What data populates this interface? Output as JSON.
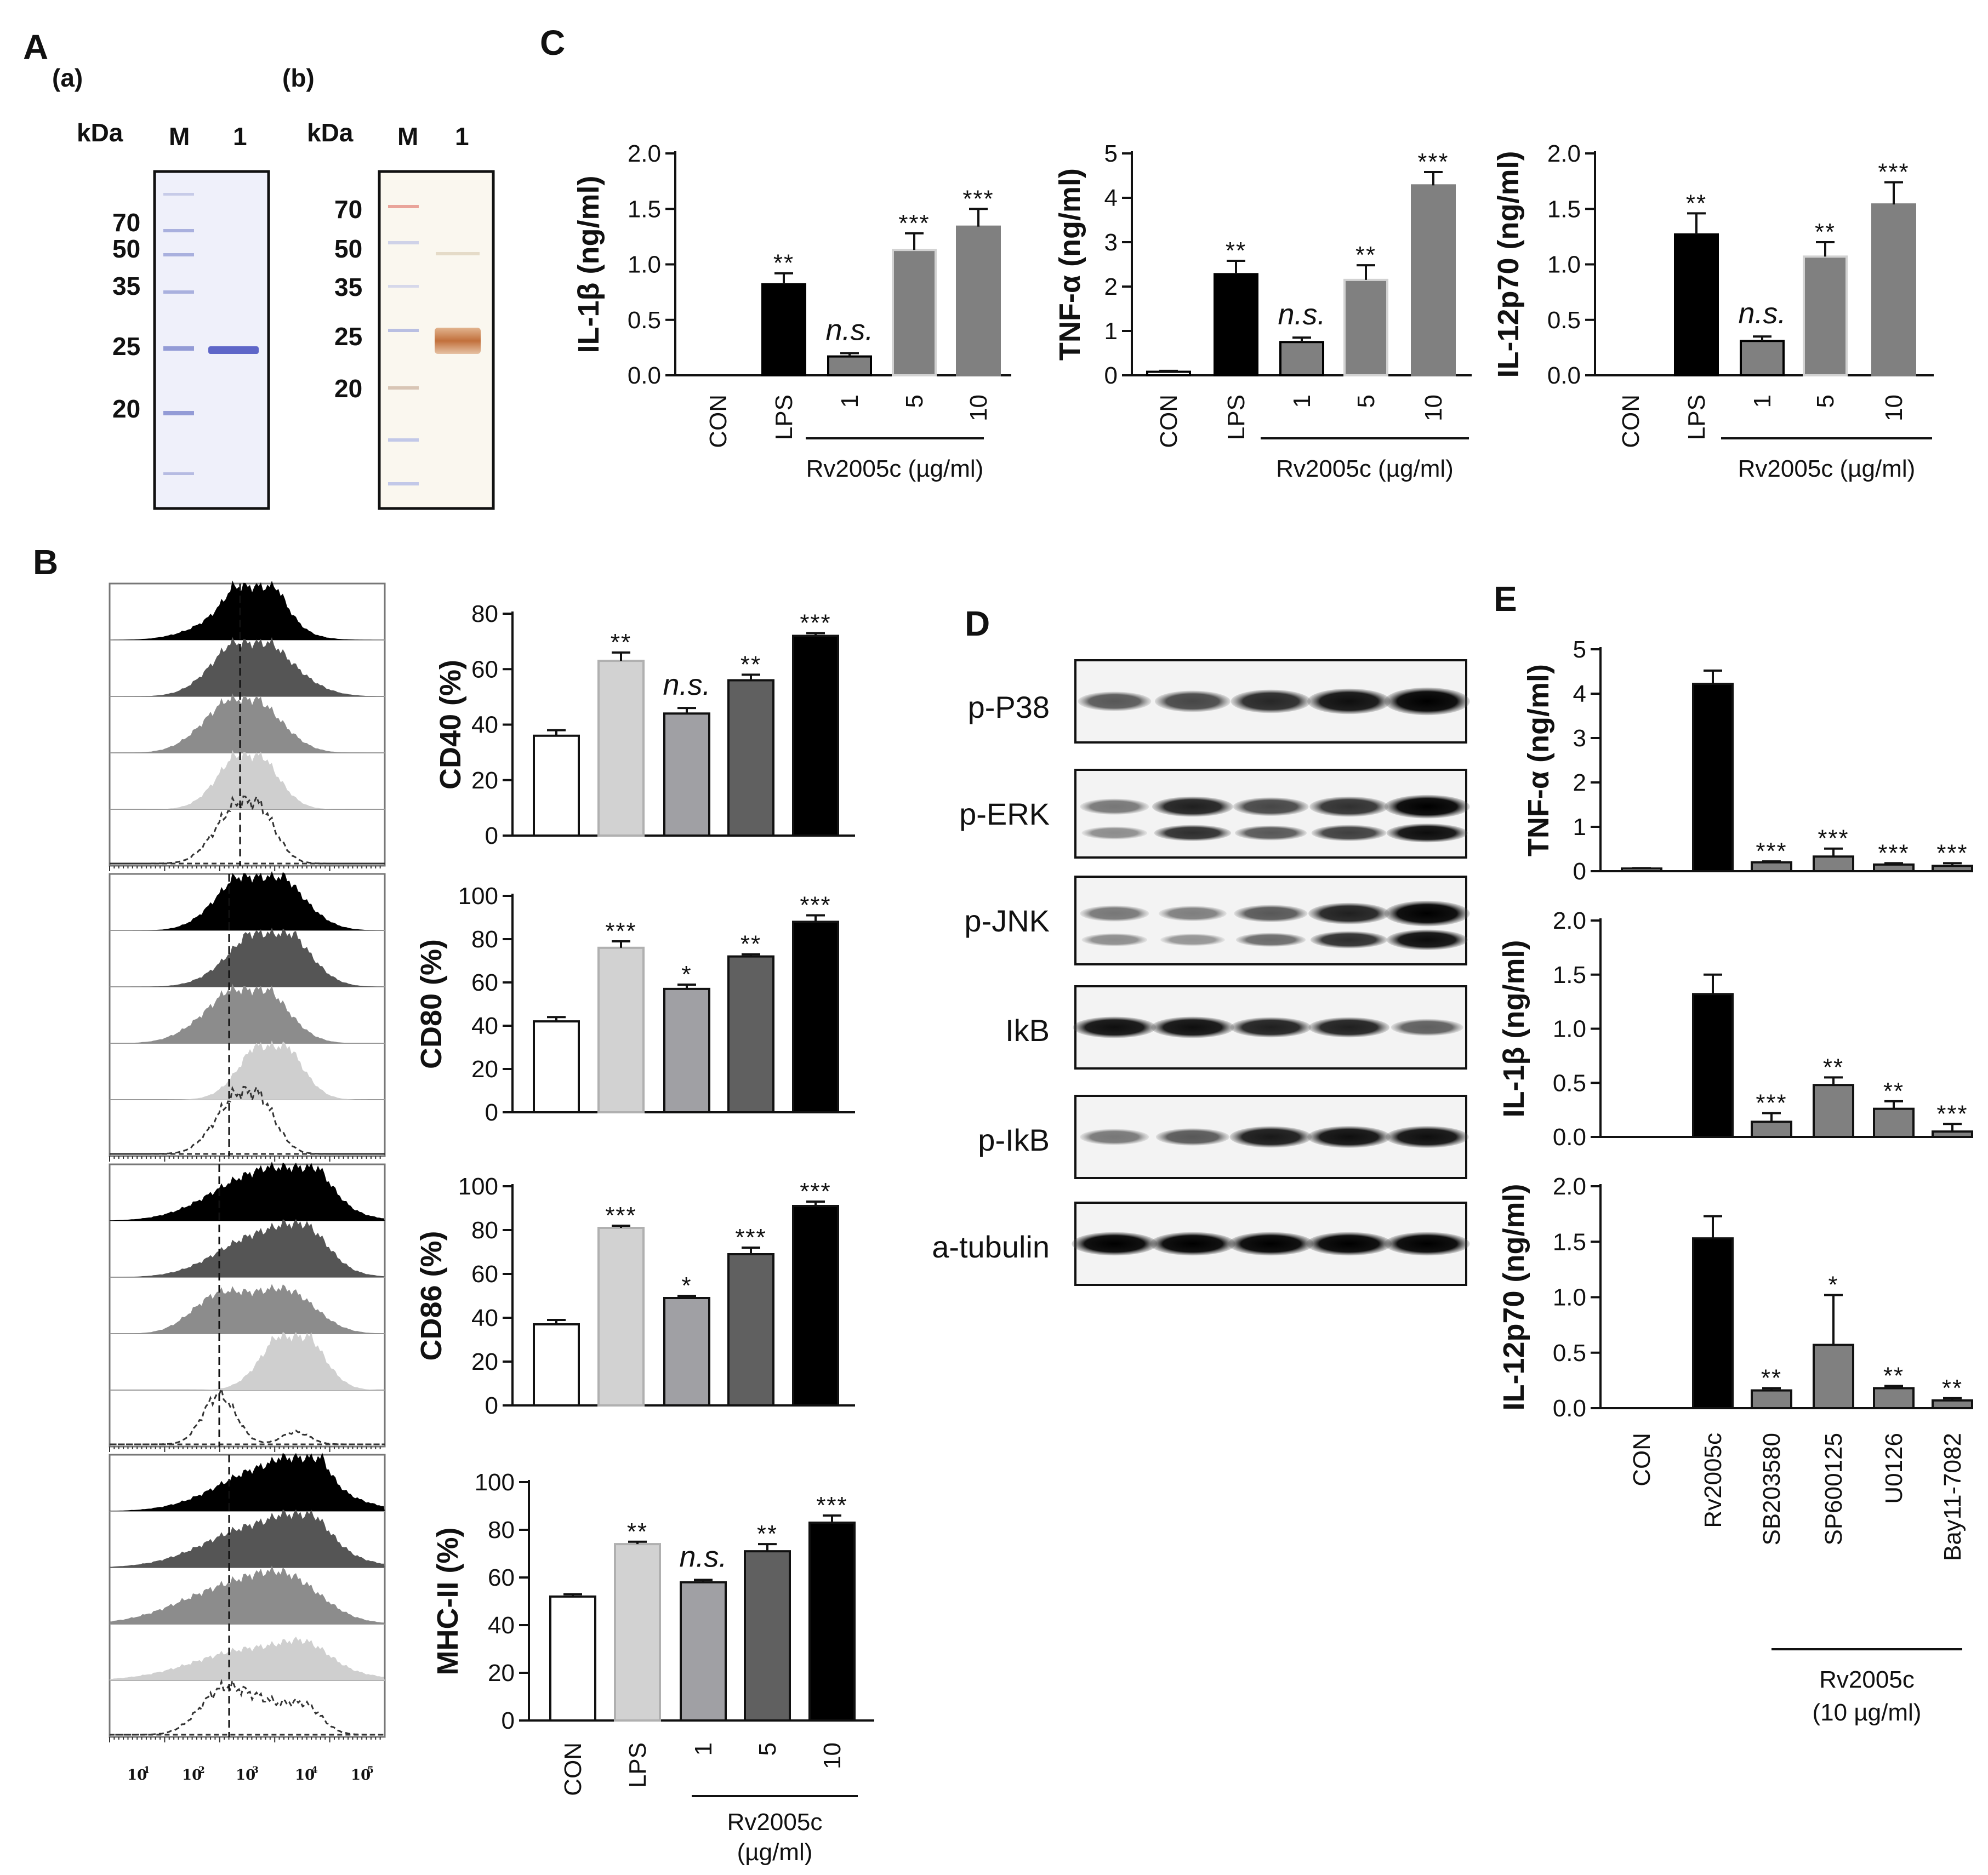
{
  "figure": {
    "panel_letters": [
      "A",
      "B",
      "C",
      "D",
      "E"
    ]
  },
  "panel_a": {
    "gels": [
      {
        "sublabel": "(a)",
        "kda_label": "kDa",
        "lanes": [
          "M",
          "1"
        ],
        "markers": [
          "70",
          "50",
          "35",
          "25",
          "20"
        ],
        "stain": "coomassie"
      },
      {
        "sublabel": "(b)",
        "kda_label": "kDa",
        "lanes": [
          "M",
          "1"
        ],
        "markers": [
          "70",
          "50",
          "35",
          "25",
          "20"
        ],
        "stain": "western"
      }
    ]
  },
  "panel_b": {
    "flow_axis_ticks": [
      "10",
      "10",
      "10",
      "10",
      "10"
    ],
    "flow_axis_exponents": [
      "1",
      "2",
      "3",
      "4",
      "5"
    ],
    "histogram_markers": [
      "CD40",
      "CD80",
      "CD86",
      "MHC-II"
    ]
  },
  "panel_d": {
    "blots": [
      "p-P38",
      "p-ERK",
      "p-JNK",
      "IkB",
      "p-IkB",
      "a-tubulin"
    ]
  },
  "colors": {
    "black": "#000000",
    "white": "#ffffff",
    "light_gray": "#d2d2d2",
    "mid_gray": "#a0a0a4",
    "dark_gray": "#606060",
    "bar_gray": "#808080"
  },
  "chart_data": [
    {
      "id": "C1",
      "type": "bar",
      "ylabel": "IL-1β (ng/ml)",
      "ylim": [
        0,
        2.0
      ],
      "yticks": [
        "0.0",
        "0.5",
        "1.0",
        "1.5",
        "2.0"
      ],
      "yticks_values": [
        0,
        0.5,
        1.0,
        1.5,
        2.0
      ],
      "categories": [
        "CON",
        "LPS",
        "1",
        "5",
        "10"
      ],
      "values": [
        0,
        0.82,
        0.17,
        1.13,
        1.34
      ],
      "errors": [
        0,
        0.1,
        0.03,
        0.15,
        0.16
      ],
      "significance": [
        "",
        "**",
        "n.s.",
        "***",
        "***"
      ],
      "group_label": "Rv2005c (µg/ml)"
    },
    {
      "id": "C2",
      "type": "bar",
      "ylabel": "TNF-α (ng/ml)",
      "ylim": [
        0,
        5
      ],
      "yticks": [
        "0",
        "1",
        "2",
        "3",
        "4",
        "5"
      ],
      "yticks_values": [
        0,
        1,
        2,
        3,
        4,
        5
      ],
      "categories": [
        "CON",
        "LPS",
        "1",
        "5",
        "10"
      ],
      "values": [
        0.08,
        2.28,
        0.75,
        2.15,
        4.28
      ],
      "errors": [
        0.02,
        0.3,
        0.1,
        0.33,
        0.3
      ],
      "significance": [
        "",
        "**",
        "n.s.",
        "**",
        "***"
      ],
      "group_label": "Rv2005c (µg/ml)"
    },
    {
      "id": "C3",
      "type": "bar",
      "ylabel": "IL-12p70 (ng/ml)",
      "ylim": [
        0,
        2.0
      ],
      "yticks": [
        "0.0",
        "0.5",
        "1.0",
        "1.5",
        "2.0"
      ],
      "yticks_values": [
        0,
        0.5,
        1.0,
        1.5,
        2.0
      ],
      "categories": [
        "CON",
        "LPS",
        "1",
        "5",
        "10"
      ],
      "values": [
        0,
        1.27,
        0.31,
        1.07,
        1.54
      ],
      "errors": [
        0,
        0.19,
        0.04,
        0.13,
        0.2
      ],
      "significance": [
        "",
        "**",
        "n.s.",
        "**",
        "***"
      ],
      "group_label": "Rv2005c (µg/ml)"
    },
    {
      "id": "B1",
      "type": "bar",
      "ylabel": "CD40 (%)",
      "ylim": [
        0,
        80
      ],
      "yticks": [
        "0",
        "20",
        "40",
        "60",
        "80"
      ],
      "yticks_values": [
        0,
        20,
        40,
        60,
        80
      ],
      "categories": [
        "CON",
        "LPS",
        "1",
        "5",
        "10"
      ],
      "values": [
        36,
        63,
        44,
        56,
        72
      ],
      "errors": [
        2,
        3,
        2,
        2,
        1
      ],
      "significance": [
        "",
        "**",
        "n.s.",
        "**",
        "***"
      ],
      "group_label": ""
    },
    {
      "id": "B2",
      "type": "bar",
      "ylabel": "CD80 (%)",
      "ylim": [
        0,
        100
      ],
      "yticks": [
        "0",
        "20",
        "40",
        "60",
        "80",
        "100"
      ],
      "yticks_values": [
        0,
        20,
        40,
        60,
        80,
        100
      ],
      "categories": [
        "CON",
        "LPS",
        "1",
        "5",
        "10"
      ],
      "values": [
        42,
        76,
        57,
        72,
        88
      ],
      "errors": [
        2,
        3,
        2,
        1,
        3
      ],
      "significance": [
        "",
        "***",
        "*",
        "**",
        "***"
      ],
      "group_label": ""
    },
    {
      "id": "B3",
      "type": "bar",
      "ylabel": "CD86 (%)",
      "ylim": [
        0,
        100
      ],
      "yticks": [
        "0",
        "20",
        "40",
        "60",
        "80",
        "100"
      ],
      "yticks_values": [
        0,
        20,
        40,
        60,
        80,
        100
      ],
      "categories": [
        "CON",
        "LPS",
        "1",
        "5",
        "10"
      ],
      "values": [
        37,
        81,
        49,
        69,
        91
      ],
      "errors": [
        2,
        1,
        1,
        3,
        2
      ],
      "significance": [
        "",
        "***",
        "*",
        "***",
        "***"
      ],
      "group_label": ""
    },
    {
      "id": "B4",
      "type": "bar",
      "ylabel": "MHC-II (%)",
      "ylim": [
        0,
        100
      ],
      "yticks": [
        "0",
        "20",
        "40",
        "60",
        "80",
        "100"
      ],
      "yticks_values": [
        0,
        20,
        40,
        60,
        80,
        100
      ],
      "categories": [
        "CON",
        "LPS",
        "1",
        "5",
        "10"
      ],
      "values": [
        52,
        74,
        58,
        71,
        83
      ],
      "errors": [
        1,
        1,
        1,
        3,
        3
      ],
      "significance": [
        "",
        "**",
        "n.s.",
        "**",
        "***"
      ],
      "group_label": "Rv2005c",
      "group_label2": "(µg/ml)"
    },
    {
      "id": "E1",
      "type": "bar",
      "ylabel": "TNF-α (ng/ml)",
      "ylim": [
        0,
        5
      ],
      "yticks": [
        "0",
        "1",
        "2",
        "3",
        "4",
        "5"
      ],
      "yticks_values": [
        0,
        1,
        2,
        3,
        4,
        5
      ],
      "categories": [
        "CON",
        "Rv2005c",
        "SB203580",
        "SP600125",
        "U0126",
        "Bay11-7082"
      ],
      "values": [
        0.06,
        4.22,
        0.2,
        0.33,
        0.15,
        0.12
      ],
      "errors": [
        0.01,
        0.3,
        0.02,
        0.18,
        0.03,
        0.06
      ],
      "significance": [
        "",
        "",
        "***",
        "***",
        "***",
        "***"
      ],
      "group_label": ""
    },
    {
      "id": "E2",
      "type": "bar",
      "ylabel": "IL-1β (ng/ml)",
      "ylim": [
        0,
        2.0
      ],
      "yticks": [
        "0.0",
        "0.5",
        "1.0",
        "1.5",
        "2.0"
      ],
      "yticks_values": [
        0,
        0.5,
        1.0,
        1.5,
        2.0
      ],
      "categories": [
        "CON",
        "Rv2005c",
        "SB203580",
        "SP600125",
        "U0126",
        "Bay11-7082"
      ],
      "values": [
        0,
        1.32,
        0.14,
        0.48,
        0.26,
        0.05
      ],
      "errors": [
        0,
        0.18,
        0.08,
        0.07,
        0.07,
        0.07
      ],
      "significance": [
        "",
        "",
        "***",
        "**",
        "**",
        "***"
      ],
      "group_label": ""
    },
    {
      "id": "E3",
      "type": "bar",
      "ylabel": "IL-12p70 (ng/ml)",
      "ylim": [
        0,
        2.0
      ],
      "yticks": [
        "0.0",
        "0.5",
        "1.0",
        "1.5",
        "2.0"
      ],
      "yticks_values": [
        0,
        0.5,
        1.0,
        1.5,
        2.0
      ],
      "categories": [
        "CON",
        "Rv2005c",
        "SB203580",
        "SP600125",
        "U0126",
        "Bay11-7082"
      ],
      "values": [
        0,
        1.53,
        0.16,
        0.57,
        0.18,
        0.07
      ],
      "errors": [
        0,
        0.2,
        0.02,
        0.45,
        0.02,
        0.02
      ],
      "significance": [
        "",
        "",
        "**",
        "*",
        "**",
        "**"
      ],
      "group_label": "Rv2005c",
      "group_label2": "(10 µg/ml)"
    }
  ]
}
